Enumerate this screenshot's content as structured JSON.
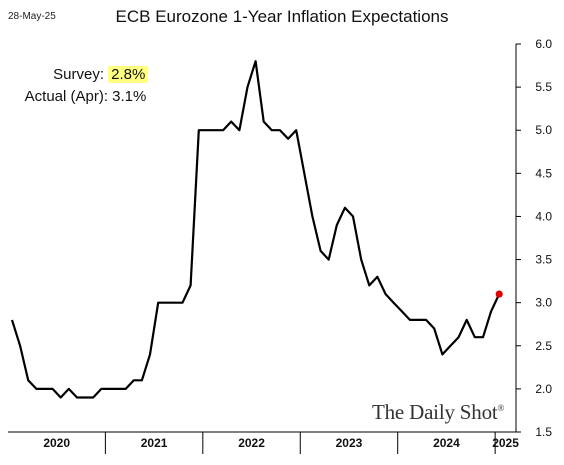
{
  "header": {
    "date_stamp": "28-May-25",
    "title": "ECB Eurozone 1-Year Inflation Expectations"
  },
  "annotation": {
    "survey_label": "Survey:",
    "survey_value": "2.8%",
    "actual_label": "Actual (Apr):",
    "actual_value": "3.1%"
  },
  "brand": {
    "name": "The Daily Shot",
    "mark": "®"
  },
  "colors": {
    "line": "#000000",
    "marker": "#e00000",
    "highlight": "#ffff80"
  },
  "chart_data": {
    "type": "line",
    "title": "ECB Eurozone 1-Year Inflation Expectations",
    "ylim": [
      1.5,
      6.0
    ],
    "yticks": [
      1.5,
      2.0,
      2.5,
      3.0,
      3.5,
      4.0,
      4.5,
      5.0,
      5.5,
      6.0
    ],
    "ytick_labels": [
      "1.5",
      "2.0",
      "2.5",
      "3.0",
      "3.5",
      "4.0",
      "4.5",
      "5.0",
      "5.5",
      "6.0"
    ],
    "y_axis_side": "right",
    "x_label_years": [
      "2020",
      "2021",
      "2022",
      "2023",
      "2024",
      "2025"
    ],
    "grid": false,
    "series": [
      {
        "x": [
          "2020-01",
          "2020-02",
          "2020-03",
          "2020-04",
          "2020-05",
          "2020-06",
          "2020-07",
          "2020-08",
          "2020-09",
          "2020-10",
          "2020-11",
          "2020-12",
          "2021-01",
          "2021-02",
          "2021-03",
          "2021-04",
          "2021-05",
          "2021-06",
          "2021-07",
          "2021-08",
          "2021-09",
          "2021-10",
          "2021-11",
          "2021-12",
          "2022-01",
          "2022-02",
          "2022-03",
          "2022-04",
          "2022-05",
          "2022-06",
          "2022-07",
          "2022-08",
          "2022-09",
          "2022-10",
          "2022-11",
          "2022-12",
          "2023-01",
          "2023-02",
          "2023-03",
          "2023-04",
          "2023-05",
          "2023-06",
          "2023-07",
          "2023-08",
          "2023-09",
          "2023-10",
          "2023-11",
          "2023-12",
          "2024-01",
          "2024-02",
          "2024-03",
          "2024-04",
          "2024-05",
          "2024-06",
          "2024-07",
          "2024-08",
          "2024-09",
          "2024-10",
          "2024-11",
          "2024-12",
          "2025-01",
          "2025-02",
          "2025-03",
          "2025-04"
        ],
        "values": [
          2.8,
          2.5,
          2.1,
          2.0,
          2.0,
          2.0,
          1.9,
          2.0,
          1.9,
          1.9,
          1.9,
          2.0,
          2.0,
          2.0,
          2.0,
          2.1,
          2.1,
          2.4,
          3.0,
          3.0,
          3.0,
          3.0,
          3.2,
          5.0,
          5.0,
          5.0,
          5.0,
          5.1,
          5.0,
          5.5,
          5.8,
          5.1,
          5.0,
          5.0,
          4.9,
          5.0,
          4.5,
          4.0,
          3.6,
          3.5,
          3.9,
          4.1,
          4.0,
          3.5,
          3.2,
          3.3,
          3.1,
          3.0,
          2.9,
          2.8,
          2.8,
          2.8,
          2.7,
          2.4,
          2.5,
          2.6,
          2.8,
          2.6,
          2.6,
          2.9,
          3.1,
          null,
          null,
          null
        ]
      }
    ],
    "highlight_point": {
      "x": "2025-01",
      "value": 3.1
    }
  }
}
